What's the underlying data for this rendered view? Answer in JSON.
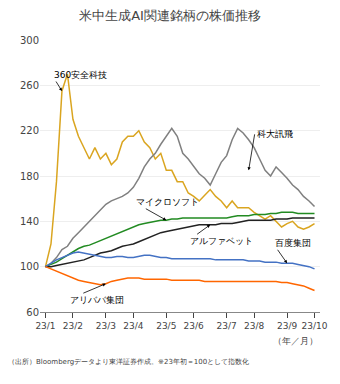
{
  "chart_data": {
    "type": "line",
    "title": "米中生成AI関連銘柄の株価推移",
    "xlabel": "（年／月）",
    "footer": "（出所）Bloombergデータより東洋証券作成。※23年初＝100として指数化",
    "categories": [
      "23/1",
      null,
      null,
      null,
      null,
      "23/2",
      null,
      null,
      null,
      null,
      null,
      "23/3",
      null,
      null,
      null,
      null,
      "23/4",
      null,
      null,
      null,
      null,
      null,
      "23/5",
      null,
      null,
      null,
      null,
      "23/6",
      null,
      null,
      null,
      null,
      null,
      "23/7",
      null,
      null,
      null,
      null,
      "23/8",
      null,
      null,
      null,
      null,
      null,
      "23/9",
      null,
      null,
      null,
      null,
      "23/10"
    ],
    "ylim": [
      60,
      300
    ],
    "yticks": [
      60,
      100,
      140,
      180,
      220,
      260,
      300
    ],
    "grid": true,
    "series": [
      {
        "name": "360安全科技",
        "color": "#DAA520",
        "values": [
          100,
          120,
          175,
          255,
          270,
          230,
          215,
          205,
          195,
          205,
          195,
          200,
          190,
          195,
          210,
          215,
          215,
          220,
          210,
          205,
          195,
          200,
          185,
          185,
          175,
          175,
          165,
          162,
          158,
          163,
          168,
          162,
          158,
          152,
          158,
          152,
          152,
          152,
          148,
          145,
          142,
          145,
          140,
          135,
          138,
          140,
          135,
          133,
          135,
          138
        ]
      },
      {
        "name": "科大訊飛",
        "color": "#808080",
        "values": [
          100,
          103,
          108,
          115,
          118,
          125,
          130,
          135,
          140,
          145,
          150,
          155,
          158,
          160,
          162,
          165,
          170,
          178,
          188,
          195,
          200,
          208,
          215,
          222,
          215,
          200,
          195,
          188,
          182,
          178,
          172,
          182,
          192,
          198,
          212,
          222,
          218,
          212,
          205,
          195,
          185,
          180,
          188,
          183,
          178,
          172,
          168,
          162,
          158,
          153
        ]
      },
      {
        "name": "マイクロソフト",
        "color": "#228B22",
        "values": [
          100,
          102,
          104,
          107,
          110,
          113,
          116,
          118,
          119,
          121,
          123,
          125,
          127,
          129,
          131,
          133,
          135,
          137,
          138,
          139,
          140,
          141,
          141,
          142,
          142,
          143,
          143,
          143,
          143,
          143,
          143,
          143,
          143,
          143,
          144,
          145,
          145,
          145,
          146,
          146,
          146,
          147,
          147,
          148,
          148,
          148,
          147,
          147,
          147,
          147
        ]
      },
      {
        "name": "アルファベット",
        "color": "#222222",
        "values": [
          100,
          100,
          101,
          102,
          103,
          104,
          105,
          106,
          108,
          110,
          112,
          113,
          114,
          116,
          118,
          119,
          120,
          122,
          124,
          126,
          128,
          130,
          131,
          132,
          133,
          134,
          135,
          136,
          137,
          137,
          137,
          137,
          138,
          138,
          138,
          139,
          140,
          141,
          141,
          141,
          141,
          141,
          142,
          142,
          142,
          143,
          143,
          143,
          143,
          143
        ]
      },
      {
        "name": "百度集団",
        "color": "#4472C4",
        "values": [
          100,
          103,
          106,
          108,
          110,
          112,
          113,
          112,
          111,
          110,
          109,
          108,
          108,
          109,
          109,
          108,
          108,
          109,
          110,
          110,
          109,
          108,
          108,
          107,
          107,
          107,
          107,
          107,
          107,
          107,
          107,
          106,
          106,
          106,
          106,
          106,
          106,
          105,
          105,
          105,
          104,
          104,
          104,
          103,
          103,
          103,
          102,
          101,
          100,
          98
        ]
      },
      {
        "name": "アリババ集団",
        "color": "#FF6600",
        "values": [
          100,
          98,
          96,
          94,
          92,
          90,
          88,
          87,
          86,
          85,
          84,
          85,
          87,
          88,
          89,
          90,
          90,
          90,
          89,
          89,
          89,
          89,
          89,
          88,
          88,
          88,
          88,
          88,
          88,
          87,
          87,
          87,
          87,
          87,
          87,
          87,
          87,
          87,
          87,
          87,
          87,
          87,
          87,
          86,
          86,
          85,
          84,
          83,
          81,
          79
        ]
      }
    ],
    "annotations": [
      {
        "text": "360安全科技",
        "x": 3,
        "y": 255
      },
      {
        "text": "科大訊飛",
        "x": 37,
        "y": 185
      },
      {
        "text": "マイクロソフト",
        "x": 22,
        "y": 141
      },
      {
        "text": "アルファベット",
        "x": 30,
        "y": 137
      },
      {
        "text": "百度集団",
        "x": 44,
        "y": 103
      },
      {
        "text": "アリババ集団",
        "x": 11,
        "y": 85
      }
    ]
  }
}
